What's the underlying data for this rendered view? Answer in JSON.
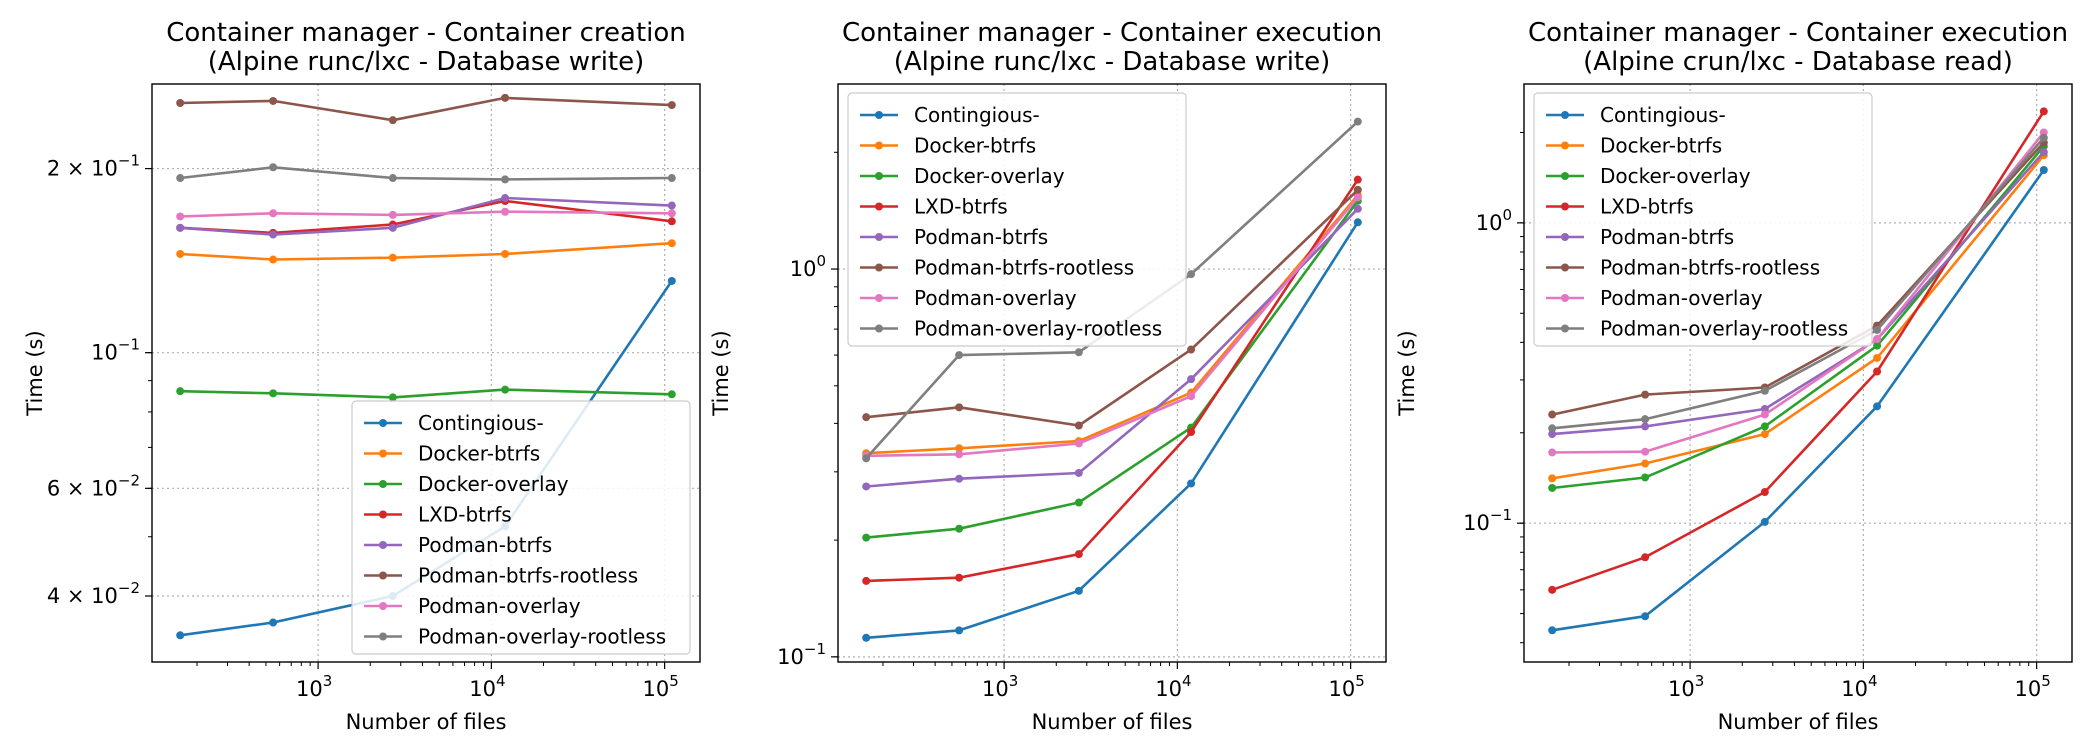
{
  "colors": {
    "Contingious-": "#1f77b4",
    "Docker-btrfs": "#ff7f0e",
    "Docker-overlay": "#2ca02c",
    "LXD-btrfs": "#d62728",
    "Podman-btrfs": "#9467bd",
    "Podman-btrfs-rootless": "#8c564b",
    "Podman-overlay": "#e377c2",
    "Podman-overlay-rootless": "#7f7f7f"
  },
  "chart_data": [
    {
      "type": "line",
      "title": "Container manager - Container creation",
      "subtitle": "(Alpine runc/lxc - Database write)",
      "xlabel": "Number of files",
      "ylabel": "Time (s)",
      "xscale": "log",
      "yscale": "log",
      "xlim": [
        110,
        160000
      ],
      "ylim": [
        0.0312,
        0.275
      ],
      "xticks": [
        {
          "value": 1000,
          "base": "10",
          "exp": "3"
        },
        {
          "value": 10000,
          "base": "10",
          "exp": "4"
        },
        {
          "value": 100000,
          "base": "10",
          "exp": "5"
        }
      ],
      "yticks": [
        {
          "value": 0.04,
          "base": "4 × 10",
          "exp": "−2"
        },
        {
          "value": 0.06,
          "base": "6 × 10",
          "exp": "−2"
        },
        {
          "value": 0.1,
          "base": "10",
          "exp": "−1"
        },
        {
          "value": 0.2,
          "base": "2 × 10",
          "exp": "−1"
        }
      ],
      "grid": true,
      "legend_position": "lower right",
      "x": [
        160,
        550,
        2700,
        12000,
        110000
      ],
      "series": [
        {
          "name": "Contingious-",
          "values": [
            0.0345,
            0.0362,
            0.04,
            0.052,
            0.131
          ]
        },
        {
          "name": "Docker-btrfs",
          "values": [
            0.145,
            0.142,
            0.143,
            0.145,
            0.151
          ]
        },
        {
          "name": "Docker-overlay",
          "values": [
            0.0865,
            0.0858,
            0.0845,
            0.087,
            0.0855
          ]
        },
        {
          "name": "LXD-btrfs",
          "values": [
            0.16,
            0.157,
            0.162,
            0.177,
            0.164
          ]
        },
        {
          "name": "Podman-btrfs",
          "values": [
            0.16,
            0.156,
            0.16,
            0.179,
            0.174
          ]
        },
        {
          "name": "Podman-btrfs-rootless",
          "values": [
            0.256,
            0.258,
            0.24,
            0.261,
            0.254
          ]
        },
        {
          "name": "Podman-overlay",
          "values": [
            0.167,
            0.169,
            0.168,
            0.17,
            0.169
          ]
        },
        {
          "name": "Podman-overlay-rootless",
          "values": [
            0.193,
            0.201,
            0.193,
            0.192,
            0.193
          ]
        }
      ]
    },
    {
      "type": "line",
      "title": "Container manager - Container execution",
      "subtitle": "(Alpine runc/lxc - Database write)",
      "xlabel": "Number of files",
      "ylabel": "Time (s)",
      "xscale": "log",
      "yscale": "log",
      "xlim": [
        110,
        160000
      ],
      "ylim": [
        0.097,
        3.0
      ],
      "xticks": [
        {
          "value": 1000,
          "base": "10",
          "exp": "3"
        },
        {
          "value": 10000,
          "base": "10",
          "exp": "4"
        },
        {
          "value": 100000,
          "base": "10",
          "exp": "5"
        }
      ],
      "yticks": [
        {
          "value": 0.1,
          "base": "10",
          "exp": "−1"
        },
        {
          "value": 1,
          "base": "10",
          "exp": "0"
        }
      ],
      "grid": true,
      "legend_position": "upper left",
      "x": [
        160,
        550,
        2700,
        12000,
        110000
      ],
      "series": [
        {
          "name": "Contingious-",
          "values": [
            0.112,
            0.117,
            0.148,
            0.28,
            1.32
          ]
        },
        {
          "name": "Docker-btrfs",
          "values": [
            0.335,
            0.345,
            0.36,
            0.48,
            1.55
          ]
        },
        {
          "name": "Docker-overlay",
          "values": [
            0.203,
            0.214,
            0.25,
            0.39,
            1.5
          ]
        },
        {
          "name": "LXD-btrfs",
          "values": [
            0.157,
            0.16,
            0.184,
            0.38,
            1.7
          ]
        },
        {
          "name": "Podman-btrfs",
          "values": [
            0.275,
            0.288,
            0.298,
            0.52,
            1.43
          ]
        },
        {
          "name": "Podman-btrfs-rootless",
          "values": [
            0.415,
            0.44,
            0.395,
            0.62,
            1.6
          ]
        },
        {
          "name": "Podman-overlay",
          "values": [
            0.33,
            0.333,
            0.355,
            0.47,
            1.53
          ]
        },
        {
          "name": "Podman-overlay-rootless",
          "values": [
            0.325,
            0.6,
            0.61,
            0.97,
            2.4
          ]
        }
      ]
    },
    {
      "type": "line",
      "title": "Container manager - Container execution",
      "subtitle": "(Alpine crun/lxc - Database read)",
      "xlabel": "Number of files",
      "ylabel": "Time (s)",
      "xscale": "log",
      "yscale": "log",
      "xlim": [
        110,
        160000
      ],
      "ylim": [
        0.0345,
        2.9
      ],
      "xticks": [
        {
          "value": 1000,
          "base": "10",
          "exp": "3"
        },
        {
          "value": 10000,
          "base": "10",
          "exp": "4"
        },
        {
          "value": 100000,
          "base": "10",
          "exp": "5"
        }
      ],
      "yticks": [
        {
          "value": 0.1,
          "base": "10",
          "exp": "−1"
        },
        {
          "value": 1,
          "base": "10",
          "exp": "0"
        }
      ],
      "grid": true,
      "legend_position": "upper left",
      "x": [
        160,
        550,
        2700,
        12000,
        110000
      ],
      "series": [
        {
          "name": "Contingious-",
          "values": [
            0.044,
            0.049,
            0.101,
            0.245,
            1.5
          ]
        },
        {
          "name": "Docker-btrfs",
          "values": [
            0.141,
            0.158,
            0.198,
            0.355,
            1.68
          ]
        },
        {
          "name": "Docker-overlay",
          "values": [
            0.131,
            0.142,
            0.21,
            0.39,
            1.8
          ]
        },
        {
          "name": "LXD-btrfs",
          "values": [
            0.06,
            0.077,
            0.127,
            0.32,
            2.35
          ]
        },
        {
          "name": "Podman-btrfs",
          "values": [
            0.198,
            0.21,
            0.24,
            0.41,
            1.72
          ]
        },
        {
          "name": "Podman-btrfs-rootless",
          "values": [
            0.23,
            0.268,
            0.283,
            0.455,
            1.85
          ]
        },
        {
          "name": "Podman-overlay",
          "values": [
            0.172,
            0.173,
            0.23,
            0.41,
            2.0
          ]
        },
        {
          "name": "Podman-overlay-rootless",
          "values": [
            0.207,
            0.222,
            0.276,
            0.44,
            1.92
          ]
        }
      ]
    }
  ]
}
